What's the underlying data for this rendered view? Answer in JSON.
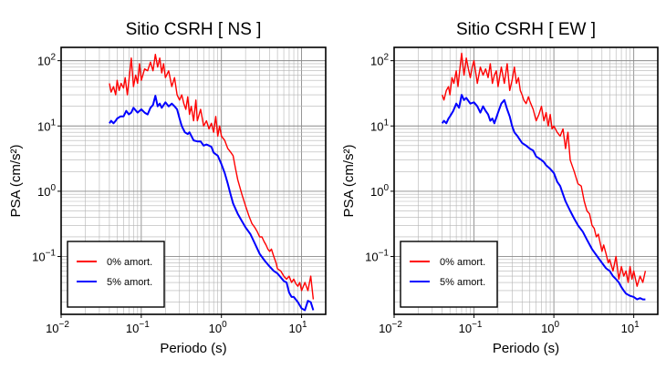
{
  "chart_data": [
    {
      "type": "line",
      "title": "Sitio CSRH [ NS ]",
      "xlabel": "Periodo (s)",
      "ylabel": "PSA (cm/s²)",
      "xscale": "log",
      "yscale": "log",
      "xlim": [
        0.01,
        20
      ],
      "ylim": [
        0.013,
        160
      ],
      "grid": true,
      "legend_position": "bottom-left",
      "x_ticks": [
        {
          "value": 0.01,
          "base": "10",
          "exp": "−2"
        },
        {
          "value": 0.1,
          "base": "10",
          "exp": "−1"
        },
        {
          "value": 1,
          "base": "10",
          "exp": "0"
        },
        {
          "value": 10,
          "base": "10",
          "exp": "1"
        }
      ],
      "y_ticks": [
        {
          "value": 0.1,
          "base": "10",
          "exp": "−1"
        },
        {
          "value": 1,
          "base": "10",
          "exp": "0"
        },
        {
          "value": 10,
          "base": "10",
          "exp": "1"
        },
        {
          "value": 100,
          "base": "10",
          "exp": "2"
        }
      ],
      "series": [
        {
          "name": "0% amort.",
          "color": "#ff0000",
          "x": [
            0.04,
            0.042,
            0.045,
            0.048,
            0.05,
            0.053,
            0.056,
            0.06,
            0.063,
            0.067,
            0.07,
            0.075,
            0.08,
            0.085,
            0.09,
            0.095,
            0.1,
            0.11,
            0.12,
            0.13,
            0.14,
            0.15,
            0.16,
            0.17,
            0.18,
            0.19,
            0.2,
            0.22,
            0.24,
            0.26,
            0.28,
            0.3,
            0.32,
            0.34,
            0.36,
            0.38,
            0.4,
            0.42,
            0.45,
            0.48,
            0.5,
            0.55,
            0.6,
            0.65,
            0.7,
            0.75,
            0.8,
            0.85,
            0.9,
            0.95,
            1.0,
            1.1,
            1.2,
            1.3,
            1.4,
            1.5,
            1.6,
            1.8,
            2.0,
            2.2,
            2.4,
            2.6,
            2.8,
            3.0,
            3.2,
            3.4,
            3.6,
            3.8,
            4.0,
            4.2,
            4.5,
            4.8,
            5.0,
            5.5,
            6.0,
            6.5,
            7.0,
            7.5,
            8.0,
            8.5,
            9.0,
            9.5,
            10,
            11,
            12,
            13,
            14
          ],
          "y": [
            45,
            33,
            40,
            30,
            50,
            35,
            45,
            38,
            55,
            30,
            48,
            110,
            40,
            60,
            45,
            90,
            50,
            75,
            70,
            95,
            70,
            125,
            80,
            110,
            65,
            90,
            55,
            70,
            40,
            55,
            30,
            25,
            30,
            22,
            18,
            28,
            15,
            20,
            12,
            25,
            12,
            18,
            10,
            12,
            9,
            11,
            8,
            14,
            7,
            10,
            7,
            6,
            4.5,
            4,
            3.5,
            2.2,
            1.5,
            0.9,
            0.6,
            0.42,
            0.32,
            0.28,
            0.24,
            0.2,
            0.2,
            0.17,
            0.15,
            0.13,
            0.12,
            0.13,
            0.1,
            0.08,
            0.065,
            0.06,
            0.05,
            0.045,
            0.05,
            0.04,
            0.045,
            0.038,
            0.035,
            0.04,
            0.03,
            0.04,
            0.03,
            0.05,
            0.022
          ]
        },
        {
          "name": "5% amort.",
          "color": "#0000ff",
          "x": [
            0.04,
            0.042,
            0.045,
            0.048,
            0.05,
            0.055,
            0.06,
            0.065,
            0.07,
            0.075,
            0.08,
            0.09,
            0.1,
            0.11,
            0.12,
            0.13,
            0.14,
            0.15,
            0.16,
            0.17,
            0.18,
            0.2,
            0.22,
            0.24,
            0.26,
            0.28,
            0.3,
            0.32,
            0.35,
            0.38,
            0.4,
            0.45,
            0.5,
            0.55,
            0.6,
            0.65,
            0.7,
            0.75,
            0.8,
            0.9,
            1.0,
            1.1,
            1.2,
            1.3,
            1.4,
            1.6,
            1.8,
            2.0,
            2.3,
            2.6,
            3.0,
            3.5,
            4.0,
            4.5,
            5.0,
            5.5,
            6.0,
            6.5,
            7.0,
            7.5,
            8.0,
            9.0,
            10,
            11,
            12,
            13,
            14
          ],
          "y": [
            11,
            12,
            11,
            12,
            13,
            14,
            14,
            17,
            15,
            16,
            19,
            16,
            18,
            16,
            15,
            19,
            21,
            29,
            20,
            22,
            19,
            23,
            20,
            22,
            20,
            18,
            13,
            10,
            8,
            7.5,
            8,
            6,
            5.8,
            5.8,
            5,
            5.2,
            5,
            4.8,
            3.9,
            3.5,
            2.6,
            1.9,
            1.3,
            0.9,
            0.65,
            0.45,
            0.35,
            0.28,
            0.22,
            0.16,
            0.11,
            0.085,
            0.07,
            0.06,
            0.055,
            0.048,
            0.042,
            0.04,
            0.028,
            0.024,
            0.024,
            0.02,
            0.016,
            0.015,
            0.021,
            0.02,
            0.015
          ]
        }
      ]
    },
    {
      "type": "line",
      "title": "Sitio CSRH [ EW ]",
      "xlabel": "Periodo (s)",
      "ylabel": "PSA (cm/s²)",
      "xscale": "log",
      "yscale": "log",
      "xlim": [
        0.01,
        20
      ],
      "ylim": [
        0.013,
        160
      ],
      "grid": true,
      "legend_position": "bottom-left",
      "x_ticks": [
        {
          "value": 0.01,
          "base": "10",
          "exp": "−2"
        },
        {
          "value": 0.1,
          "base": "10",
          "exp": "−1"
        },
        {
          "value": 1,
          "base": "10",
          "exp": "0"
        },
        {
          "value": 10,
          "base": "10",
          "exp": "1"
        }
      ],
      "y_ticks": [
        {
          "value": 0.1,
          "base": "10",
          "exp": "−1"
        },
        {
          "value": 1,
          "base": "10",
          "exp": "0"
        },
        {
          "value": 10,
          "base": "10",
          "exp": "1"
        },
        {
          "value": 100,
          "base": "10",
          "exp": "2"
        }
      ],
      "series": [
        {
          "name": "0% amort.",
          "color": "#ff0000",
          "x": [
            0.04,
            0.042,
            0.045,
            0.048,
            0.05,
            0.053,
            0.056,
            0.06,
            0.063,
            0.067,
            0.07,
            0.075,
            0.08,
            0.085,
            0.09,
            0.095,
            0.1,
            0.11,
            0.12,
            0.13,
            0.14,
            0.15,
            0.16,
            0.17,
            0.18,
            0.19,
            0.2,
            0.22,
            0.24,
            0.26,
            0.28,
            0.3,
            0.32,
            0.34,
            0.36,
            0.38,
            0.4,
            0.42,
            0.45,
            0.48,
            0.5,
            0.55,
            0.6,
            0.65,
            0.7,
            0.75,
            0.8,
            0.85,
            0.9,
            0.95,
            1.0,
            1.1,
            1.2,
            1.3,
            1.4,
            1.5,
            1.6,
            1.8,
            2.0,
            2.2,
            2.4,
            2.6,
            2.8,
            3.0,
            3.2,
            3.4,
            3.6,
            3.8,
            4.0,
            4.2,
            4.5,
            4.8,
            5.0,
            5.5,
            6.0,
            6.5,
            7.0,
            7.5,
            8.0,
            8.5,
            9.0,
            9.5,
            10,
            11,
            12,
            13,
            14
          ],
          "y": [
            30,
            25,
            35,
            40,
            30,
            55,
            45,
            70,
            40,
            80,
            130,
            60,
            110,
            75,
            55,
            80,
            100,
            45,
            80,
            60,
            75,
            55,
            90,
            45,
            60,
            70,
            40,
            80,
            45,
            90,
            35,
            50,
            80,
            45,
            55,
            35,
            30,
            25,
            22,
            28,
            24,
            18,
            12,
            15,
            20,
            12,
            16,
            10,
            15,
            9,
            10,
            8,
            7,
            9,
            4.5,
            8,
            3,
            2.0,
            1.3,
            1.2,
            0.7,
            0.5,
            0.45,
            0.3,
            0.27,
            0.2,
            0.22,
            0.16,
            0.12,
            0.15,
            0.11,
            0.08,
            0.09,
            0.06,
            0.1,
            0.045,
            0.07,
            0.05,
            0.06,
            0.04,
            0.07,
            0.045,
            0.06,
            0.035,
            0.05,
            0.04,
            0.06
          ]
        },
        {
          "name": "5% amort.",
          "color": "#0000ff",
          "x": [
            0.04,
            0.042,
            0.045,
            0.048,
            0.05,
            0.055,
            0.06,
            0.065,
            0.07,
            0.075,
            0.08,
            0.09,
            0.1,
            0.11,
            0.12,
            0.13,
            0.14,
            0.15,
            0.16,
            0.17,
            0.18,
            0.2,
            0.22,
            0.24,
            0.26,
            0.28,
            0.3,
            0.32,
            0.35,
            0.38,
            0.4,
            0.45,
            0.5,
            0.55,
            0.6,
            0.65,
            0.7,
            0.75,
            0.8,
            0.9,
            1.0,
            1.1,
            1.2,
            1.3,
            1.4,
            1.6,
            1.8,
            2.0,
            2.3,
            2.6,
            3.0,
            3.5,
            4.0,
            4.5,
            5.0,
            5.5,
            6.0,
            6.5,
            7.0,
            7.5,
            8.0,
            9.0,
            10,
            11,
            12,
            13,
            14
          ],
          "y": [
            11,
            12,
            11,
            13,
            14,
            17,
            22,
            19,
            30,
            25,
            27,
            22,
            23,
            20,
            16,
            20,
            17,
            15,
            12,
            13,
            11,
            16,
            22,
            25,
            18,
            14,
            10,
            8,
            7,
            6,
            5.5,
            5,
            4.5,
            4.2,
            3.4,
            3.2,
            3.0,
            2.8,
            2.5,
            2.2,
            1.9,
            1.4,
            1.2,
            0.9,
            0.7,
            0.5,
            0.38,
            0.3,
            0.24,
            0.18,
            0.13,
            0.1,
            0.08,
            0.066,
            0.06,
            0.05,
            0.045,
            0.04,
            0.034,
            0.03,
            0.027,
            0.025,
            0.024,
            0.022,
            0.023,
            0.022,
            0.022
          ]
        }
      ]
    }
  ]
}
